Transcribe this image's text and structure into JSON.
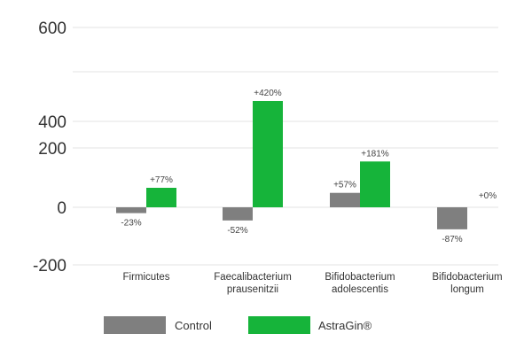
{
  "chart_data": {
    "type": "bar",
    "categories": [
      [
        "Firmicutes"
      ],
      [
        "Faecalibacterium",
        "prausenitzii"
      ],
      [
        "Bifidobacterium",
        "adolescentis"
      ],
      [
        "Bifidobacterium",
        "longum"
      ]
    ],
    "series": [
      {
        "name": "Control",
        "color": "#7f7f7f",
        "values": [
          -23,
          -52,
          57,
          -87
        ],
        "labels": [
          "-23%",
          "-52%",
          "+57%",
          "-87%"
        ]
      },
      {
        "name": "AstraGin®",
        "color": "#16b43a",
        "values": [
          77,
          420,
          181,
          0
        ],
        "labels": [
          "+77%",
          "+420%",
          "+181%",
          "+0%"
        ]
      }
    ],
    "y_ticks": [
      {
        "label": "600",
        "value": 600
      },
      {
        "label": "400",
        "value": 400
      },
      {
        "label": "200",
        "value": 200
      },
      {
        "label": "0",
        "value": 0
      },
      {
        "label": "-200",
        "value": -200
      }
    ],
    "grid": true,
    "legend_position": "bottom-left",
    "title": "",
    "xlabel": "",
    "ylabel": ""
  }
}
